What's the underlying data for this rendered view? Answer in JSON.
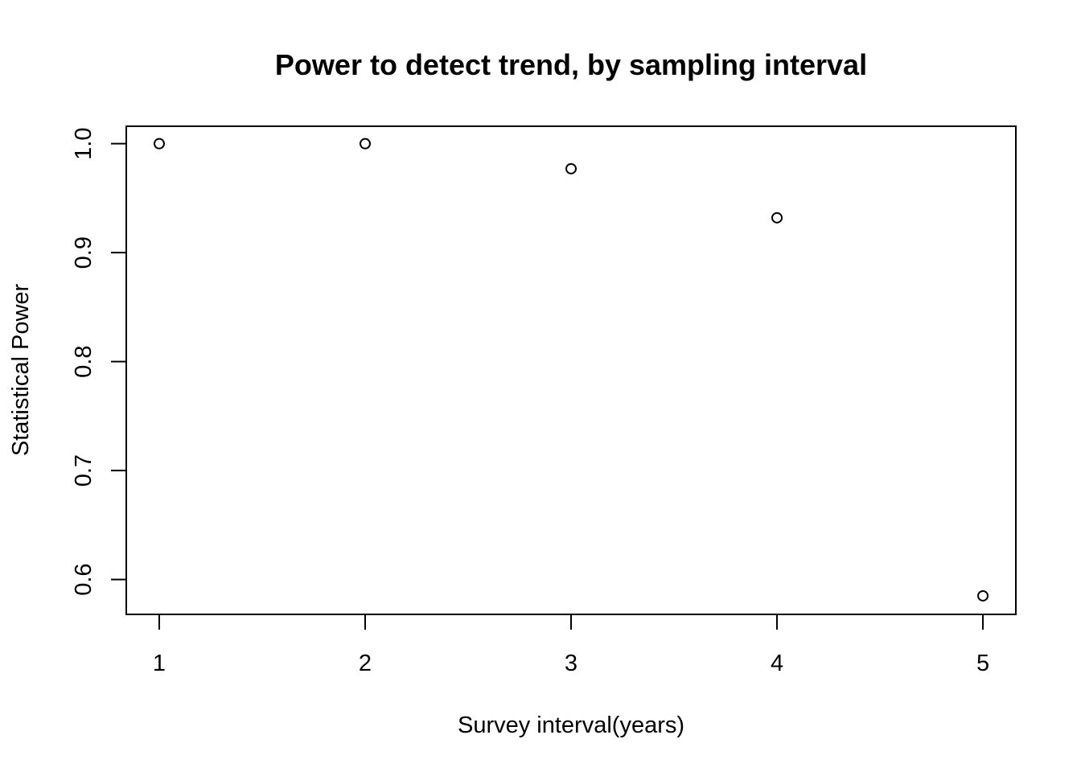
{
  "chart_data": {
    "type": "scatter",
    "title": "Power to detect trend, by sampling interval",
    "xlabel": "Survey interval(years)",
    "ylabel": "Statistical Power",
    "x": [
      1,
      2,
      3,
      4,
      5
    ],
    "y": [
      1.0,
      1.0,
      0.977,
      0.932,
      0.585
    ],
    "x_ticks": [
      "1",
      "2",
      "3",
      "4",
      "5"
    ],
    "y_ticks": [
      "0.6",
      "0.7",
      "0.8",
      "0.9",
      "1.0"
    ],
    "xlim": [
      0.84,
      5.16
    ],
    "ylim": [
      0.568,
      1.016
    ],
    "marker": "open-circle",
    "grid": false,
    "color": "#000000"
  }
}
